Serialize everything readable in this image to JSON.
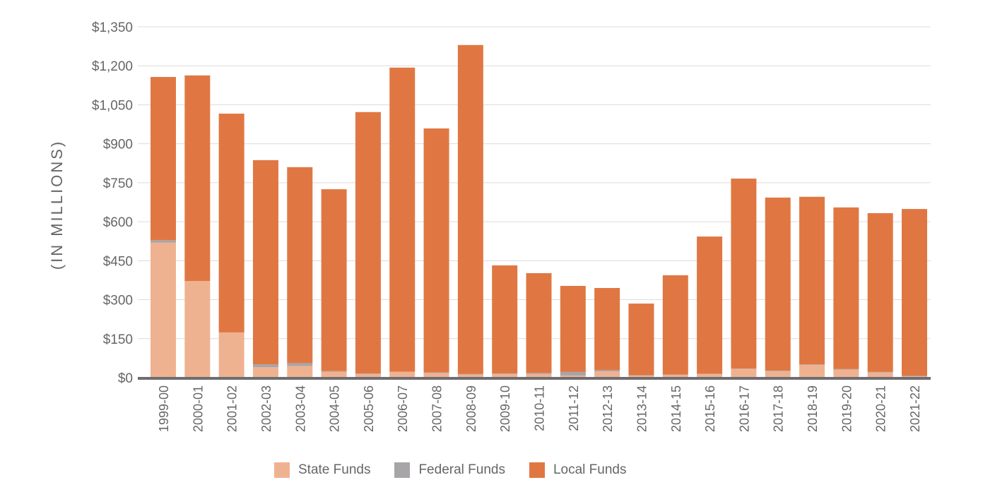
{
  "chart_data": {
    "type": "bar",
    "stacked": true,
    "title": "",
    "xlabel": "",
    "ylabel": "(IN MILLIONS)",
    "ylim": [
      0,
      1350
    ],
    "yticks": [
      0,
      150,
      300,
      450,
      600,
      750,
      900,
      1050,
      1200,
      1350
    ],
    "ytick_labels": [
      "$0",
      "$150",
      "$300",
      "$450",
      "$600",
      "$750",
      "$900",
      "$1,050",
      "$1,200",
      "$1,350"
    ],
    "grid": true,
    "legend_position": "bottom",
    "categories": [
      "1999-00",
      "2000-01",
      "2001-02",
      "2002-03",
      "2003-04",
      "2004-05",
      "2005-06",
      "2006-07",
      "2007-08",
      "2008-09",
      "2009-10",
      "2010-11",
      "2011-12",
      "2012-13",
      "2013-14",
      "2014-15",
      "2015-16",
      "2016-17",
      "2017-18",
      "2018-19",
      "2019-20",
      "2020-21",
      "2021-22"
    ],
    "series": [
      {
        "name": "State Funds",
        "color": "#efb291",
        "values": [
          520,
          372,
          174,
          40,
          45,
          23,
          14,
          23,
          18,
          12,
          14,
          14,
          8,
          24,
          8,
          11,
          14,
          34,
          25,
          49,
          31,
          20,
          5
        ]
      },
      {
        "name": "Federal Funds",
        "color": "#a7a5a8",
        "values": [
          9,
          0,
          0,
          11,
          11,
          2,
          2,
          0,
          2,
          2,
          2,
          4,
          14,
          5,
          1,
          1,
          1,
          1,
          2,
          2,
          2,
          2,
          2
        ]
      },
      {
        "name": "Local Funds",
        "color": "#e07743",
        "values": [
          628,
          791,
          842,
          786,
          754,
          700,
          1006,
          1170,
          939,
          1266,
          416,
          384,
          331,
          316,
          276,
          382,
          528,
          731,
          666,
          645,
          622,
          611,
          642
        ]
      }
    ]
  }
}
